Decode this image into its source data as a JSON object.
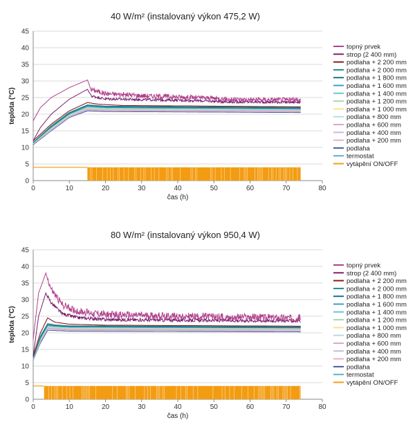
{
  "chart_data": [
    {
      "type": "line",
      "title": "40 W/m² (instalovaný výkon 475,2 W)",
      "xlabel": "čas (h)",
      "ylabel": "teplota (°C)",
      "xlim": [
        0,
        80
      ],
      "ylim": [
        0,
        45
      ],
      "x_ticks": [
        "0",
        "10",
        "20",
        "30",
        "40",
        "50",
        "60",
        "70",
        "80"
      ],
      "y_ticks": [
        "0",
        "5",
        "10",
        "15",
        "20",
        "25",
        "30",
        "35",
        "40",
        "45"
      ],
      "legend_position": "right",
      "heat_on_start_h": 15,
      "heat_end_h": 74,
      "series": [
        {
          "name": "topný prvek",
          "color": "#b0408c",
          "points": [
            [
              0,
              18
            ],
            [
              2,
              22
            ],
            [
              5,
              25
            ],
            [
              10,
              28
            ],
            [
              15,
              30.3
            ],
            [
              16,
              27.5
            ],
            [
              20,
              26.2
            ],
            [
              30,
              25.6
            ],
            [
              40,
              25.2
            ],
            [
              50,
              24.8
            ],
            [
              55,
              24.4
            ],
            [
              74,
              24.3
            ]
          ],
          "noise": 1.5
        },
        {
          "name": "strop (2 400 mm)",
          "color": "#7a1f6e",
          "points": [
            [
              0,
              12
            ],
            [
              2,
              16
            ],
            [
              5,
              20
            ],
            [
              10,
              24.5
            ],
            [
              15,
              27.5
            ],
            [
              16,
              25.5
            ],
            [
              20,
              24.6
            ],
            [
              30,
              24.4
            ],
            [
              40,
              24.2
            ],
            [
              50,
              23.9
            ],
            [
              55,
              23.7
            ],
            [
              74,
              23.6
            ]
          ],
          "noise": 0.8
        },
        {
          "name": "podlaha + 2 200 mm",
          "color": "#8b1a1a",
          "points": [
            [
              0,
              12
            ],
            [
              5,
              17
            ],
            [
              10,
              21
            ],
            [
              15,
              23.5
            ],
            [
              18,
              23
            ],
            [
              25,
              22.6
            ],
            [
              40,
              22.5
            ],
            [
              74,
              22.2
            ]
          ],
          "noise": 0
        },
        {
          "name": "podlaha + 2 000 mm",
          "color": "#1f8a8a",
          "points": [
            [
              0,
              11.5
            ],
            [
              5,
              16.5
            ],
            [
              10,
              20.5
            ],
            [
              15,
              22.8
            ],
            [
              20,
              22.4
            ],
            [
              74,
              22
            ]
          ],
          "noise": 0
        },
        {
          "name": "podlaha + 1 800 mm",
          "color": "#1a6f8c",
          "points": [
            [
              0,
              11.5
            ],
            [
              5,
              16.3
            ],
            [
              10,
              20.3
            ],
            [
              15,
              22.6
            ],
            [
              20,
              22.2
            ],
            [
              74,
              21.8
            ]
          ],
          "noise": 0
        },
        {
          "name": "podlaha + 1 600 mm",
          "color": "#3a9fc8",
          "points": [
            [
              0,
              11.4
            ],
            [
              5,
              16.1
            ],
            [
              10,
              20.1
            ],
            [
              15,
              22.4
            ],
            [
              20,
              22
            ],
            [
              74,
              21.6
            ]
          ],
          "noise": 0
        },
        {
          "name": "podlaha + 1 400 mm",
          "color": "#6ec2e0",
          "points": [
            [
              0,
              11.3
            ],
            [
              5,
              16
            ],
            [
              10,
              20
            ],
            [
              15,
              22.2
            ],
            [
              20,
              21.9
            ],
            [
              74,
              21.5
            ]
          ],
          "noise": 0
        },
        {
          "name": "podlaha + 1 200 mm",
          "color": "#a8d8b0",
          "points": [
            [
              0,
              11.3
            ],
            [
              5,
              15.8
            ],
            [
              10,
              19.8
            ],
            [
              15,
              22
            ],
            [
              20,
              21.7
            ],
            [
              74,
              21.4
            ]
          ],
          "noise": 0
        },
        {
          "name": "podlaha + 1 000 mm",
          "color": "#f0e68c",
          "points": [
            [
              0,
              11.2
            ],
            [
              5,
              15.7
            ],
            [
              10,
              19.7
            ],
            [
              15,
              21.9
            ],
            [
              20,
              21.6
            ],
            [
              74,
              21.3
            ]
          ],
          "noise": 0
        },
        {
          "name": "podlaha + 800 mm",
          "color": "#b8d8e8",
          "points": [
            [
              0,
              11.2
            ],
            [
              5,
              15.6
            ],
            [
              10,
              19.6
            ],
            [
              15,
              21.8
            ],
            [
              20,
              21.5
            ],
            [
              74,
              21.2
            ]
          ],
          "noise": 0
        },
        {
          "name": "podlaha + 600 mm",
          "color": "#d8a8c8",
          "points": [
            [
              0,
              11.1
            ],
            [
              5,
              15.5
            ],
            [
              10,
              19.5
            ],
            [
              15,
              21.6
            ],
            [
              20,
              21.3
            ],
            [
              74,
              21
            ]
          ],
          "noise": 0
        },
        {
          "name": "podlaha + 400 mm",
          "color": "#c8b8e0",
          "points": [
            [
              0,
              11
            ],
            [
              5,
              15.3
            ],
            [
              10,
              19.3
            ],
            [
              15,
              21.4
            ],
            [
              20,
              21.1
            ],
            [
              74,
              20.8
            ]
          ],
          "noise": 0
        },
        {
          "name": "podlaha + 200 mm",
          "color": "#e8b0c0",
          "points": [
            [
              0,
              11
            ],
            [
              5,
              15.2
            ],
            [
              10,
              19.2
            ],
            [
              15,
              21.3
            ],
            [
              20,
              21
            ],
            [
              74,
              20.7
            ]
          ],
          "noise": 0
        },
        {
          "name": "podlaha",
          "color": "#4a5a9a",
          "points": [
            [
              0,
              10.8
            ],
            [
              5,
              15
            ],
            [
              10,
              19
            ],
            [
              15,
              21
            ],
            [
              20,
              20.8
            ],
            [
              74,
              20.5
            ]
          ],
          "noise": 0
        },
        {
          "name": "termostat",
          "color": "#5ab0c8",
          "points": [
            [
              0,
              11
            ],
            [
              5,
              15.4
            ],
            [
              10,
              19.5
            ],
            [
              15,
              21.7
            ],
            [
              20,
              21.4
            ],
            [
              74,
              21.1
            ]
          ],
          "noise": 0
        },
        {
          "name": "vytápění ON/OFF",
          "color": "#f39c12",
          "on_level": 4,
          "off_level": 0
        }
      ]
    },
    {
      "type": "line",
      "title": "80 W/m² (instalovaný výkon 950,4 W)",
      "xlabel": "čas (h)",
      "ylabel": "teplota (°C)",
      "xlim": [
        0,
        80
      ],
      "ylim": [
        0,
        45
      ],
      "x_ticks": [
        "0",
        "10",
        "20",
        "30",
        "40",
        "50",
        "60",
        "70",
        "80"
      ],
      "y_ticks": [
        "0",
        "5",
        "10",
        "15",
        "20",
        "25",
        "30",
        "35",
        "40",
        "45"
      ],
      "legend_position": "right",
      "heat_on_start_h": 3,
      "heat_end_h": 74,
      "series": [
        {
          "name": "topný prvek",
          "color": "#b0408c",
          "points": [
            [
              0,
              18
            ],
            [
              1.5,
              32
            ],
            [
              3.5,
              38
            ],
            [
              5,
              33
            ],
            [
              8,
              28.5
            ],
            [
              12,
              26.5
            ],
            [
              20,
              25.5
            ],
            [
              30,
              25.2
            ],
            [
              50,
              24.8
            ],
            [
              74,
              24.5
            ]
          ],
          "noise": 2.2
        },
        {
          "name": "strop (2 400 mm)",
          "color": "#7a1f6e",
          "points": [
            [
              0,
              13
            ],
            [
              1.5,
              25
            ],
            [
              3.5,
              32
            ],
            [
              5,
              29
            ],
            [
              8,
              25.8
            ],
            [
              12,
              24.6
            ],
            [
              20,
              24
            ],
            [
              40,
              23.8
            ],
            [
              74,
              23.6
            ]
          ],
          "noise": 1.0
        },
        {
          "name": "podlaha + 2 200 mm",
          "color": "#8b1a1a",
          "points": [
            [
              0,
              13
            ],
            [
              2,
              20
            ],
            [
              4,
              24.5
            ],
            [
              6,
              23.2
            ],
            [
              10,
              22.6
            ],
            [
              20,
              22.3
            ],
            [
              74,
              22
            ]
          ],
          "noise": 0
        },
        {
          "name": "podlaha + 2 000 mm",
          "color": "#1f8a8a",
          "points": [
            [
              0,
              12.5
            ],
            [
              2,
              19
            ],
            [
              4,
              22.8
            ],
            [
              6,
              22.4
            ],
            [
              10,
              22.1
            ],
            [
              74,
              21.8
            ]
          ],
          "noise": 0
        },
        {
          "name": "podlaha + 1 800 mm",
          "color": "#1a6f8c",
          "points": [
            [
              0,
              12.5
            ],
            [
              2,
              18.7
            ],
            [
              4,
              22.5
            ],
            [
              6,
              22.2
            ],
            [
              10,
              21.9
            ],
            [
              74,
              21.6
            ]
          ],
          "noise": 0
        },
        {
          "name": "podlaha + 1 600 mm",
          "color": "#3a9fc8",
          "points": [
            [
              0,
              12.4
            ],
            [
              2,
              18.5
            ],
            [
              4,
              22.3
            ],
            [
              6,
              22
            ],
            [
              10,
              21.8
            ],
            [
              74,
              21.5
            ]
          ],
          "noise": 0
        },
        {
          "name": "podlaha + 1 400 mm",
          "color": "#6ec2e0",
          "points": [
            [
              0,
              12.3
            ],
            [
              2,
              18.3
            ],
            [
              4,
              22.1
            ],
            [
              6,
              21.9
            ],
            [
              10,
              21.7
            ],
            [
              74,
              21.4
            ]
          ],
          "noise": 0
        },
        {
          "name": "podlaha + 1 200 mm",
          "color": "#a8d8b0",
          "points": [
            [
              0,
              12.3
            ],
            [
              2,
              18.1
            ],
            [
              4,
              21.9
            ],
            [
              6,
              21.7
            ],
            [
              10,
              21.5
            ],
            [
              74,
              21.3
            ]
          ],
          "noise": 0
        },
        {
          "name": "podlaha + 1 000 mm",
          "color": "#f0e68c",
          "points": [
            [
              0,
              12.2
            ],
            [
              2,
              18
            ],
            [
              4,
              21.8
            ],
            [
              6,
              21.6
            ],
            [
              10,
              21.4
            ],
            [
              74,
              21.2
            ]
          ],
          "noise": 0
        },
        {
          "name": "podlaha + 800 mm",
          "color": "#b8d8e8",
          "points": [
            [
              0,
              12.2
            ],
            [
              2,
              17.9
            ],
            [
              4,
              21.7
            ],
            [
              6,
              21.5
            ],
            [
              10,
              21.3
            ],
            [
              74,
              21.1
            ]
          ],
          "noise": 0
        },
        {
          "name": "podlaha + 600 mm",
          "color": "#d8a8c8",
          "points": [
            [
              0,
              12.1
            ],
            [
              2,
              17.7
            ],
            [
              4,
              21.5
            ],
            [
              6,
              21.3
            ],
            [
              10,
              21.1
            ],
            [
              74,
              20.9
            ]
          ],
          "noise": 0
        },
        {
          "name": "podlaha + 400 mm",
          "color": "#c8b8e0",
          "points": [
            [
              0,
              12
            ],
            [
              2,
              17.5
            ],
            [
              4,
              21.3
            ],
            [
              6,
              21.1
            ],
            [
              10,
              20.9
            ],
            [
              74,
              20.7
            ]
          ],
          "noise": 0
        },
        {
          "name": "podlaha + 200 mm",
          "color": "#e8b0c0",
          "points": [
            [
              0,
              12
            ],
            [
              2,
              17.4
            ],
            [
              4,
              21.2
            ],
            [
              6,
              21
            ],
            [
              10,
              20.8
            ],
            [
              74,
              20.6
            ]
          ],
          "noise": 0
        },
        {
          "name": "podlaha",
          "color": "#4a5a9a",
          "points": [
            [
              0,
              11.8
            ],
            [
              2,
              17
            ],
            [
              4,
              20.8
            ],
            [
              6,
              20.7
            ],
            [
              10,
              20.5
            ],
            [
              74,
              20.3
            ]
          ],
          "noise": 0
        },
        {
          "name": "termostat",
          "color": "#5ab0c8",
          "points": [
            [
              0,
              12
            ],
            [
              2,
              17.6
            ],
            [
              4,
              21.4
            ],
            [
              6,
              21.2
            ],
            [
              10,
              21
            ],
            [
              74,
              20.8
            ]
          ],
          "noise": 0
        },
        {
          "name": "vytápění ON/OFF",
          "color": "#f39c12",
          "on_level": 4,
          "off_level": 0
        }
      ]
    }
  ]
}
